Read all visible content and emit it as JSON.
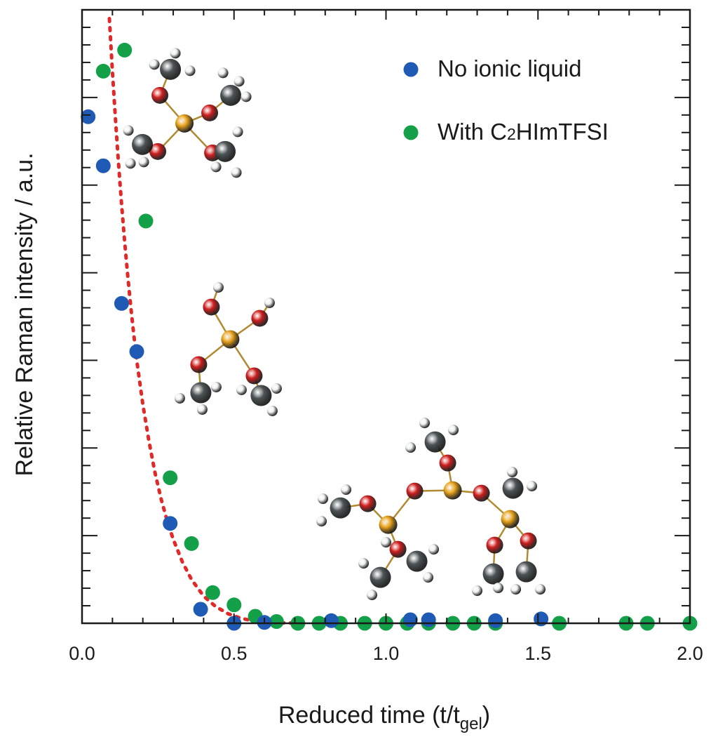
{
  "chart_data": {
    "type": "scatter",
    "title": "",
    "xlabel": "Reduced time (t/t",
    "xlabel_subscript": "gel",
    "xlabel_close": ")",
    "ylabel": "Relative Raman intensity / a.u.",
    "xlim": [
      0.0,
      2.0
    ],
    "ylim": [
      0,
      7
    ],
    "x_ticks": [
      "0.0",
      "0.5",
      "1.0",
      "1.5",
      "2.0"
    ],
    "y_tick_labels_shown": false,
    "legend_position": "top-right",
    "series": [
      {
        "name": "No ionic liquid",
        "color": "#1f5bb5",
        "points": [
          [
            0.02,
            5.78
          ],
          [
            0.07,
            5.22
          ],
          [
            0.13,
            3.65
          ],
          [
            0.18,
            3.1
          ],
          [
            0.29,
            1.14
          ],
          [
            0.39,
            0.16
          ],
          [
            0.5,
            0.0
          ],
          [
            0.6,
            0.01
          ],
          [
            0.82,
            0.03
          ],
          [
            1.08,
            0.04
          ],
          [
            1.14,
            0.04
          ],
          [
            1.36,
            0.03
          ],
          [
            1.51,
            0.05
          ]
        ]
      },
      {
        "name": "With C2HImTFSI",
        "legend_parts": [
          "With C",
          "2",
          "HImTFSI"
        ],
        "color": "#13a049",
        "points": [
          [
            0.07,
            6.3
          ],
          [
            0.14,
            6.54
          ],
          [
            0.21,
            4.59
          ],
          [
            0.29,
            1.66
          ],
          [
            0.36,
            0.91
          ],
          [
            0.43,
            0.35
          ],
          [
            0.5,
            0.21
          ],
          [
            0.57,
            0.08
          ],
          [
            0.64,
            0.02
          ],
          [
            0.71,
            0.0
          ],
          [
            0.78,
            0.0
          ],
          [
            0.85,
            0.0
          ],
          [
            0.93,
            0.0
          ],
          [
            1.0,
            0.0
          ],
          [
            1.07,
            0.0
          ],
          [
            1.14,
            0.0
          ],
          [
            1.22,
            0.0
          ],
          [
            1.29,
            0.0
          ],
          [
            1.36,
            0.0
          ],
          [
            1.57,
            0.0
          ],
          [
            1.79,
            0.0
          ],
          [
            1.86,
            0.0
          ],
          [
            2.0,
            0.0
          ]
        ]
      }
    ],
    "fit_curve": {
      "style": "dotted",
      "color": "#e02a2a",
      "points": [
        [
          0.09,
          6.9
        ],
        [
          0.1,
          6.3
        ],
        [
          0.11,
          5.75
        ],
        [
          0.12,
          5.25
        ],
        [
          0.13,
          4.78
        ],
        [
          0.14,
          4.36
        ],
        [
          0.15,
          3.98
        ],
        [
          0.16,
          3.62
        ],
        [
          0.17,
          3.3
        ],
        [
          0.18,
          3.0
        ],
        [
          0.2,
          2.5
        ],
        [
          0.22,
          2.08
        ],
        [
          0.24,
          1.72
        ],
        [
          0.26,
          1.42
        ],
        [
          0.28,
          1.17
        ],
        [
          0.3,
          0.96
        ],
        [
          0.33,
          0.7
        ],
        [
          0.36,
          0.5
        ],
        [
          0.4,
          0.31
        ],
        [
          0.44,
          0.19
        ],
        [
          0.48,
          0.11
        ],
        [
          0.52,
          0.06
        ],
        [
          0.56,
          0.03
        ],
        [
          0.6,
          0.015
        ],
        [
          0.66,
          0.005
        ],
        [
          0.72,
          0.0
        ]
      ]
    },
    "molecule_insets": [
      {
        "label": "tetramethoxysilane",
        "at": [
          0.36,
          5.8
        ]
      },
      {
        "label": "partially-hydrolyzed-silane",
        "at": [
          0.52,
          3.2
        ]
      },
      {
        "label": "siloxane-oligomer",
        "at": [
          1.3,
          0.9
        ]
      }
    ]
  }
}
